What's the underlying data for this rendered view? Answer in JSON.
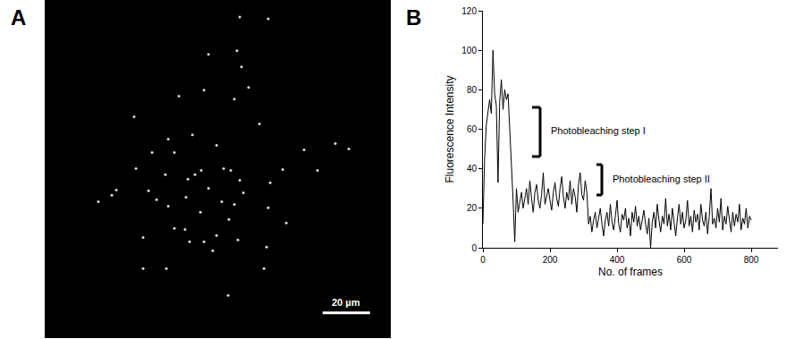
{
  "chart_data": [
    {
      "type": "image",
      "label": "A",
      "xlim": [
        0,
        146
      ],
      "ylim": [
        0,
        143
      ],
      "tick_labels": false,
      "color": "#dcdcdc",
      "spots": {
        "x": [
          82.3,
          72.5,
          60.4,
          63.4,
          66.0,
          69.1,
          75.5,
          78.5,
          56.6,
          67.2,
          80.0,
          86.0,
          90.6,
          74.7,
          65.7,
          59.2,
          61.1,
          67.2,
          77.7,
          80.0,
          100.4,
          109.4,
          95.1,
          93.6,
          45.3,
          41.5,
          30.2,
          28.3,
          52.1,
          54.7,
          47.2,
          52.1,
          59.6,
          43.8,
          83.0,
          81.1,
          94.3,
          82.3,
          69.1,
          37.7,
          22.6,
          77.4,
          92.5,
          101.9,
          115.1,
          122.6,
          128.3,
          38.5,
          72.5,
          51.3,
          41.5,
          94.3,
          50.9,
          62.3,
          83.8,
          81.5,
          70.9,
          54.7
        ],
        "y": [
          66.8,
          81.5,
          67.2,
          69.1,
          70.9,
          63.4,
          71.7,
          70.9,
          102.3,
          104.9,
          101.1,
          106.0,
          90.6,
          57.7,
          53.2,
          46.0,
          40.8,
          40.8,
          50.2,
          56.6,
          71.3,
          79.6,
          65.7,
          38.5,
          78.5,
          42.6,
          62.6,
          60.4,
          84.2,
          78.5,
          58.5,
          55.8,
          59.6,
          62.3,
          114.7,
          121.5,
          135.1,
          135.8,
          120.0,
          93.6,
          57.7,
          18.1,
          29.4,
          48.7,
          70.9,
          82.3,
          80.0,
          71.7,
          43.4,
          29.4,
          29.4,
          55.1,
          69.1,
          86.0,
          61.5,
          41.5,
          37.0,
          46.4
        ]
      },
      "scale_bar": {
        "value": 20,
        "label": "20 µm"
      }
    },
    {
      "type": "line",
      "label": "B",
      "color": "#000000",
      "x_label": "No. of frames",
      "y_label": "Fluorescence Intensity",
      "xlim": [
        0,
        880
      ],
      "xticks": [
        0,
        200,
        400,
        600,
        800
      ],
      "ylim": [
        0,
        120
      ],
      "yticks": [
        0,
        20,
        40,
        60,
        80,
        100,
        120
      ],
      "annotations": [
        "Photobleaching step I",
        "Photobleaching step II"
      ],
      "x": [
        0,
        5,
        10,
        15,
        20,
        25,
        30,
        35,
        40,
        45,
        50,
        55,
        60,
        65,
        70,
        75,
        80,
        85,
        90,
        95,
        100,
        105,
        110,
        115,
        120,
        125,
        130,
        135,
        140,
        145,
        150,
        155,
        160,
        165,
        170,
        175,
        180,
        185,
        190,
        195,
        200,
        205,
        210,
        215,
        220,
        225,
        230,
        235,
        240,
        245,
        250,
        255,
        260,
        265,
        270,
        275,
        280,
        285,
        290,
        295,
        300,
        305,
        310,
        315,
        320,
        325,
        330,
        335,
        340,
        345,
        350,
        355,
        360,
        365,
        370,
        375,
        380,
        385,
        390,
        395,
        400,
        405,
        410,
        415,
        420,
        425,
        430,
        435,
        440,
        445,
        450,
        455,
        460,
        465,
        470,
        475,
        480,
        485,
        490,
        495,
        500,
        505,
        510,
        515,
        520,
        525,
        530,
        535,
        540,
        545,
        550,
        555,
        560,
        565,
        570,
        575,
        580,
        585,
        590,
        595,
        600,
        605,
        610,
        615,
        620,
        625,
        630,
        635,
        640,
        645,
        650,
        655,
        660,
        665,
        670,
        675,
        680,
        685,
        690,
        695,
        700,
        705,
        710,
        715,
        720,
        725,
        730,
        735,
        740,
        745,
        750,
        755,
        760,
        765,
        770,
        775,
        780,
        785,
        790,
        795,
        800
      ],
      "values": [
        12,
        45,
        62,
        70,
        75,
        68,
        100,
        78,
        72,
        33,
        74,
        85,
        70,
        80,
        75,
        78,
        62,
        40,
        24,
        3,
        30,
        18,
        24,
        28,
        20,
        26,
        30,
        22,
        34,
        25,
        18,
        28,
        32,
        24,
        20,
        27,
        38,
        22,
        26,
        30,
        24,
        19,
        28,
        33,
        25,
        21,
        30,
        36,
        26,
        20,
        28,
        24,
        34,
        22,
        30,
        26,
        18,
        32,
        38,
        27,
        24,
        34,
        28,
        12,
        16,
        8,
        14,
        18,
        10,
        15,
        20,
        12,
        6,
        14,
        18,
        11,
        22,
        13,
        9,
        16,
        24,
        12,
        8,
        17,
        14,
        20,
        10,
        15,
        6,
        18,
        13,
        21,
        11,
        16,
        9,
        14,
        19,
        12,
        7,
        15,
        0,
        13,
        18,
        10,
        22,
        14,
        8,
        16,
        12,
        25,
        11,
        17,
        9,
        20,
        13,
        6,
        15,
        22,
        12,
        18,
        10,
        14,
        24,
        11,
        16,
        8,
        19,
        13,
        17,
        9,
        22,
        14,
        11,
        18,
        7,
        16,
        30,
        12,
        15,
        10,
        20,
        13,
        25,
        9,
        16,
        12,
        21,
        14,
        8,
        18,
        11,
        17,
        13,
        22,
        9,
        15,
        12,
        20,
        10,
        16,
        14
      ]
    }
  ]
}
